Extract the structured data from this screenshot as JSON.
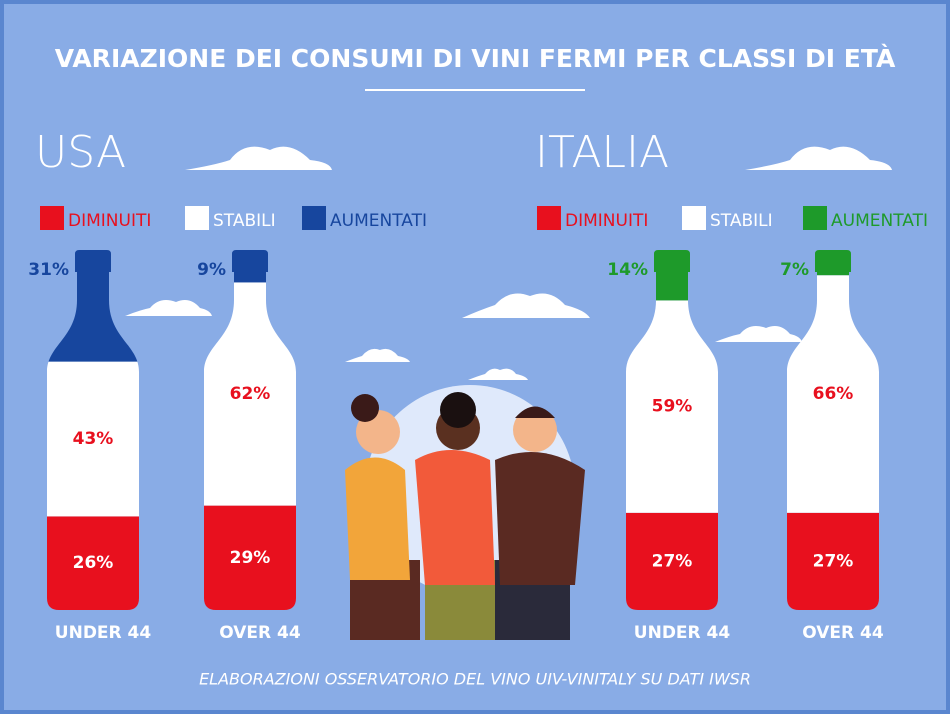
{
  "title": "VARIAZIONE DEI CONSUMI DI VINI FERMI PER CLASSI DI ETÀ",
  "source": "ELABORAZIONI OSSERVATORIO DEL VINO UIV-VINITALY SU DATI IWSR",
  "chart_data": [
    {
      "type": "bottle",
      "title": "USA",
      "categories": [
        "UNDER 44",
        "OVER 44"
      ],
      "ylim": [
        0,
        100
      ],
      "series": [
        {
          "name": "DIMINUITI",
          "color": "#e8101e",
          "values": [
            26,
            29
          ],
          "value_labels": [
            "26%",
            "29%"
          ]
        },
        {
          "name": "STABILI",
          "color": "#ffffff",
          "values": [
            43,
            62
          ],
          "value_labels": [
            "43%",
            "62%"
          ]
        },
        {
          "name": "AUMENTATI",
          "color": "#17469e",
          "values": [
            31,
            9
          ],
          "value_labels": [
            "31%",
            "9%"
          ]
        }
      ]
    },
    {
      "type": "bottle",
      "title": "ITALIA",
      "categories": [
        "UNDER 44",
        "OVER 44"
      ],
      "ylim": [
        0,
        100
      ],
      "series": [
        {
          "name": "DIMINUITI",
          "color": "#e8101e",
          "values": [
            27,
            27
          ],
          "value_labels": [
            "27%",
            "27%"
          ]
        },
        {
          "name": "STABILI",
          "color": "#ffffff",
          "values": [
            59,
            66
          ],
          "value_labels": [
            "59%",
            "66%"
          ]
        },
        {
          "name": "AUMENTATI",
          "color": "#1e9a2a",
          "values": [
            14,
            7
          ],
          "value_labels": [
            "14%",
            "7%"
          ]
        }
      ]
    }
  ]
}
